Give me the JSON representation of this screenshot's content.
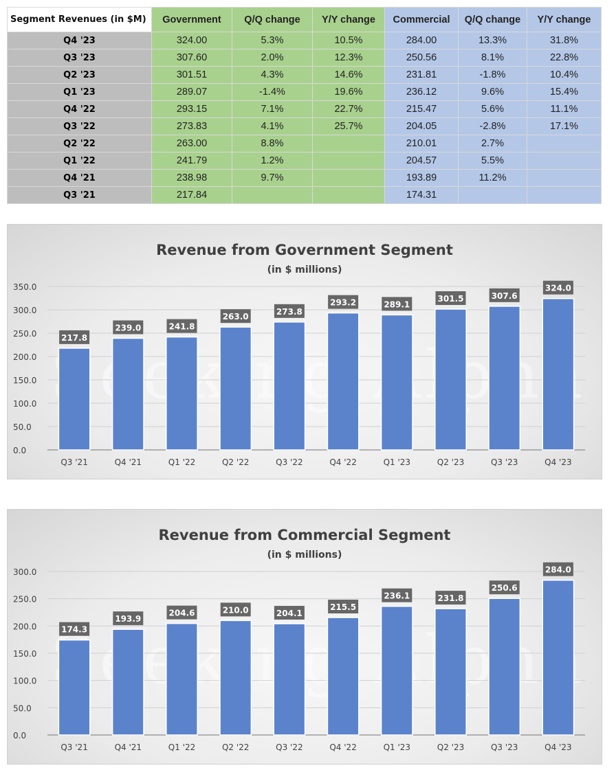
{
  "table": {
    "headers": [
      "Segment Revenues (in $M)",
      "Government",
      "Q/Q change",
      "Y/Y change",
      "Commercial",
      "Q/Q change",
      "Y/Y change"
    ],
    "rows": [
      [
        "Q4 '23",
        "324.00",
        "5.3%",
        "10.5%",
        "284.00",
        "13.3%",
        "31.8%"
      ],
      [
        "Q3 '23",
        "307.60",
        "2.0%",
        "12.3%",
        "250.56",
        "8.1%",
        "22.8%"
      ],
      [
        "Q2 '23",
        "301.51",
        "4.3%",
        "14.6%",
        "231.81",
        "-1.8%",
        "10.4%"
      ],
      [
        "Q1 '23",
        "289.07",
        "-1.4%",
        "19.6%",
        "236.12",
        "9.6%",
        "15.4%"
      ],
      [
        "Q4 '22",
        "293.15",
        "7.1%",
        "22.7%",
        "215.47",
        "5.6%",
        "11.1%"
      ],
      [
        "Q3 '22",
        "273.83",
        "4.1%",
        "25.7%",
        "204.05",
        "-2.8%",
        "17.1%"
      ],
      [
        "Q2 '22",
        "263.00",
        "8.8%",
        "",
        "210.01",
        "2.7%",
        ""
      ],
      [
        "Q1 '22",
        "241.79",
        "1.2%",
        "",
        "204.57",
        "5.5%",
        ""
      ],
      [
        "Q4 '21",
        "238.98",
        "9.7%",
        "",
        "193.89",
        "11.2%",
        ""
      ],
      [
        "Q3 '21",
        "217.84",
        "",
        "",
        "174.31",
        "",
        ""
      ]
    ]
  },
  "watermark": "Seeking Alpha",
  "colors": {
    "bar": "#5b83cc",
    "label_bg": "#666666",
    "gov_fill": "#a9d18e",
    "com_fill": "#b4c7e7"
  },
  "chart_data": [
    {
      "type": "bar",
      "title": "Revenue from Government Segment",
      "subtitle": "(in $ millions)",
      "categories": [
        "Q3 '21",
        "Q4 '21",
        "Q1 '22",
        "Q2 '22",
        "Q3 '22",
        "Q4 '22",
        "Q1 '23",
        "Q2 '23",
        "Q3 '23",
        "Q4 '23"
      ],
      "values": [
        217.8,
        239.0,
        241.8,
        263.0,
        273.8,
        293.2,
        289.1,
        301.5,
        307.6,
        324.0
      ],
      "ylim": [
        0,
        350
      ],
      "yticks": [
        0,
        50,
        100,
        150,
        200,
        250,
        300,
        350
      ],
      "grid": true,
      "legend": "none"
    },
    {
      "type": "bar",
      "title": "Revenue from Commercial Segment",
      "subtitle": "(in $ millions)",
      "categories": [
        "Q3 '21",
        "Q4 '21",
        "Q1 '22",
        "Q2 '22",
        "Q3 '22",
        "Q4 '22",
        "Q1 '23",
        "Q2 '23",
        "Q3 '23",
        "Q4 '23"
      ],
      "values": [
        174.3,
        193.9,
        204.6,
        210.0,
        204.1,
        215.5,
        236.1,
        231.8,
        250.6,
        284.0
      ],
      "ylim": [
        0,
        300
      ],
      "yticks": [
        0,
        50,
        100,
        150,
        200,
        250,
        300
      ],
      "grid": true,
      "legend": "none"
    }
  ]
}
